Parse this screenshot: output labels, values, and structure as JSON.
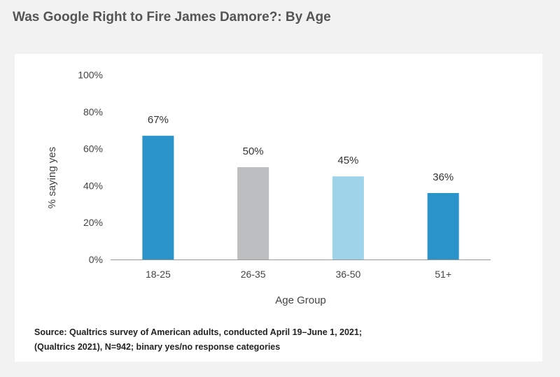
{
  "title": "Was Google Right to Fire James Damore?: By Age",
  "source": {
    "line1": "Source: Qualtrics survey of American adults, conducted April 19–June 1, 2021;",
    "line2": "(Qualtrics 2021),  N=942; binary yes/no response categories"
  },
  "chart_data": {
    "type": "bar",
    "title": "Was Google Right to Fire James Damore?: By Age",
    "xlabel": "Age Group",
    "ylabel": "% saying yes",
    "categories": [
      "18-25",
      "26-35",
      "36-50",
      "51+"
    ],
    "values": [
      67,
      50,
      45,
      36
    ],
    "value_labels": [
      "67%",
      "50%",
      "45%",
      "36%"
    ],
    "colors": [
      "#2a93c9",
      "#bdbec0",
      "#9ed3ea",
      "#2a93c9"
    ],
    "ylim": [
      0,
      100
    ],
    "yticks": [
      0,
      20,
      40,
      60,
      80,
      100
    ],
    "ytick_labels": [
      "0%",
      "20%",
      "40%",
      "60%",
      "80%",
      "100%"
    ],
    "grid": false,
    "legend": "none"
  }
}
